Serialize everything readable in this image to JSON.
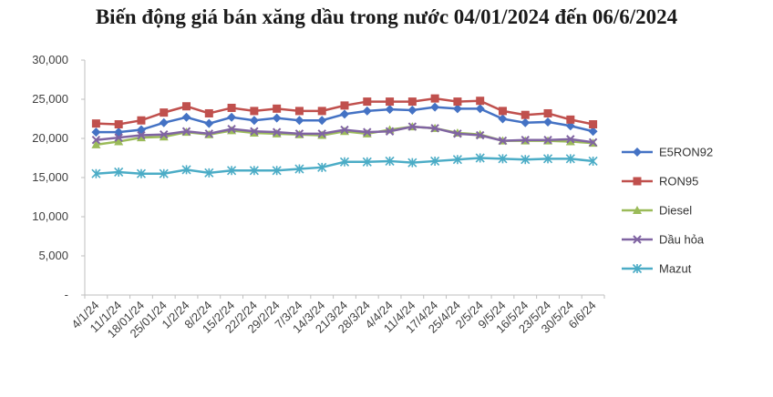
{
  "chart_data": {
    "type": "line",
    "title": "Biến động giá bán xăng dầu trong nước 04/01/2024 đến 06/6/2024",
    "xlabel": "",
    "ylabel": "",
    "ylim": [
      0,
      30000
    ],
    "yticks": [
      "-",
      "5,000",
      "10,000",
      "15,000",
      "20,000",
      "25,000",
      "30,000"
    ],
    "grid": false,
    "legend": "right",
    "categories": [
      "4/1/24",
      "11/1/24",
      "18/01/24",
      "25/01/24",
      "1/2/24",
      "8/2/24",
      "15/2/24",
      "22/2/24",
      "29/2/24",
      "7/3/24",
      "14/3/24",
      "21/3/24",
      "28/3/24",
      "4/4/24",
      "11/4/24",
      "17/4/24",
      "25/4/24",
      "2/5/24",
      "9/5/24",
      "16/5/24",
      "23/5/24",
      "30/5/24",
      "6/6/24"
    ],
    "series": [
      {
        "name": "E5RON92",
        "color": "#4472C4",
        "marker": "diamond",
        "values": [
          20800,
          20800,
          21100,
          22000,
          22700,
          21900,
          22700,
          22300,
          22600,
          22300,
          22300,
          23100,
          23500,
          23700,
          23600,
          24000,
          23800,
          23800,
          22500,
          22000,
          22100,
          21600,
          20900
        ]
      },
      {
        "name": "RON95",
        "color": "#C0504D",
        "marker": "square",
        "values": [
          21900,
          21800,
          22300,
          23300,
          24100,
          23200,
          23900,
          23500,
          23800,
          23500,
          23500,
          24200,
          24700,
          24700,
          24700,
          25100,
          24700,
          24800,
          23500,
          23000,
          23200,
          22400,
          21800
        ]
      },
      {
        "name": "Diesel",
        "color": "#9BBB59",
        "marker": "triangle",
        "values": [
          19200,
          19600,
          20100,
          20200,
          20800,
          20500,
          21000,
          20700,
          20600,
          20500,
          20400,
          20900,
          20600,
          21100,
          21500,
          21300,
          20700,
          20500,
          19700,
          19700,
          19700,
          19600,
          19400
        ]
      },
      {
        "name": "Dầu hỏa",
        "color": "#8064A2",
        "marker": "x",
        "values": [
          19800,
          20100,
          20400,
          20500,
          20900,
          20600,
          21200,
          20900,
          20800,
          20600,
          20600,
          21100,
          20800,
          20900,
          21500,
          21300,
          20600,
          20400,
          19700,
          19800,
          19800,
          19900,
          19500
        ]
      },
      {
        "name": "Mazut",
        "color": "#4BACC6",
        "marker": "star",
        "values": [
          15500,
          15700,
          15500,
          15500,
          16000,
          15600,
          15900,
          15900,
          15900,
          16100,
          16300,
          17000,
          17000,
          17100,
          16900,
          17100,
          17300,
          17500,
          17400,
          17300,
          17400,
          17400,
          17100
        ]
      }
    ]
  }
}
